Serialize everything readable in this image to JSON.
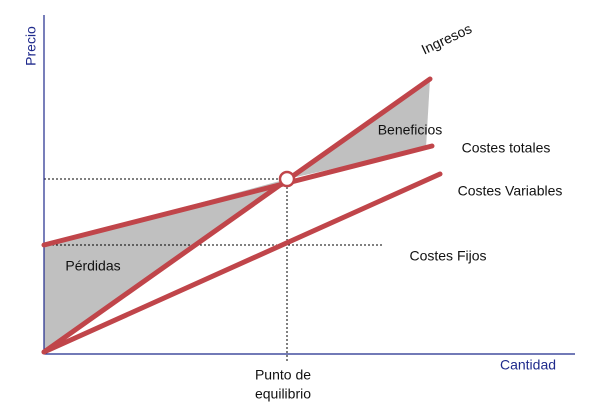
{
  "axes": {
    "y_label": "Precio",
    "x_label": "Cantidad"
  },
  "lines": {
    "revenue": "Ingresos",
    "total_costs": "Costes totales",
    "variable_costs": "Costes Variables",
    "fixed_costs": "Costes Fijos"
  },
  "regions": {
    "profit": "Beneficios",
    "loss": "Pérdidas"
  },
  "break_even": {
    "line1": "Punto de",
    "line2": "equilibrio"
  }
}
